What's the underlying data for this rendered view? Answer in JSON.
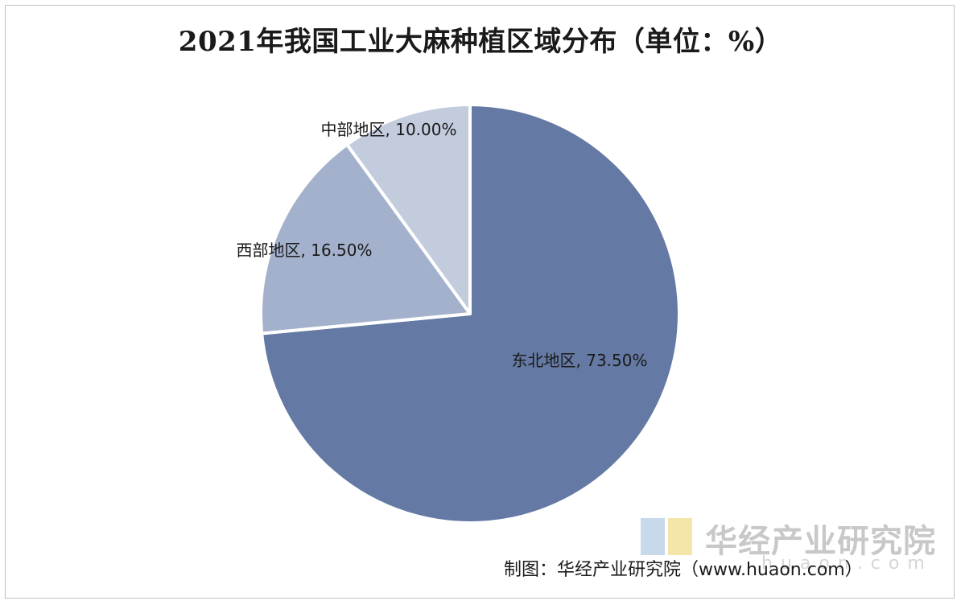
{
  "chart_data": {
    "type": "pie",
    "title": "2021年我国工业大麻种植区域分布（单位：%）",
    "unit": "%",
    "categories": [
      "东北地区",
      "西部地区",
      "中部地区"
    ],
    "values": [
      73.5,
      16.5,
      10.0
    ],
    "labels": [
      "东北地区, 73.50%",
      "西部地区, 16.50%",
      "中部地区, 10.00%"
    ],
    "colors": [
      "#6479a3",
      "#a3b1cc",
      "#c3ccdd"
    ],
    "start": "12 o'clock",
    "direction": "clockwise",
    "legend": "none"
  },
  "source": "制图：华经产业研究院（www.huaon.com）",
  "watermark": {
    "name": "华经产业研究院",
    "url": "huaon.com",
    "mark_colors": [
      "#c9d9ec",
      "#f3e6a8"
    ]
  }
}
